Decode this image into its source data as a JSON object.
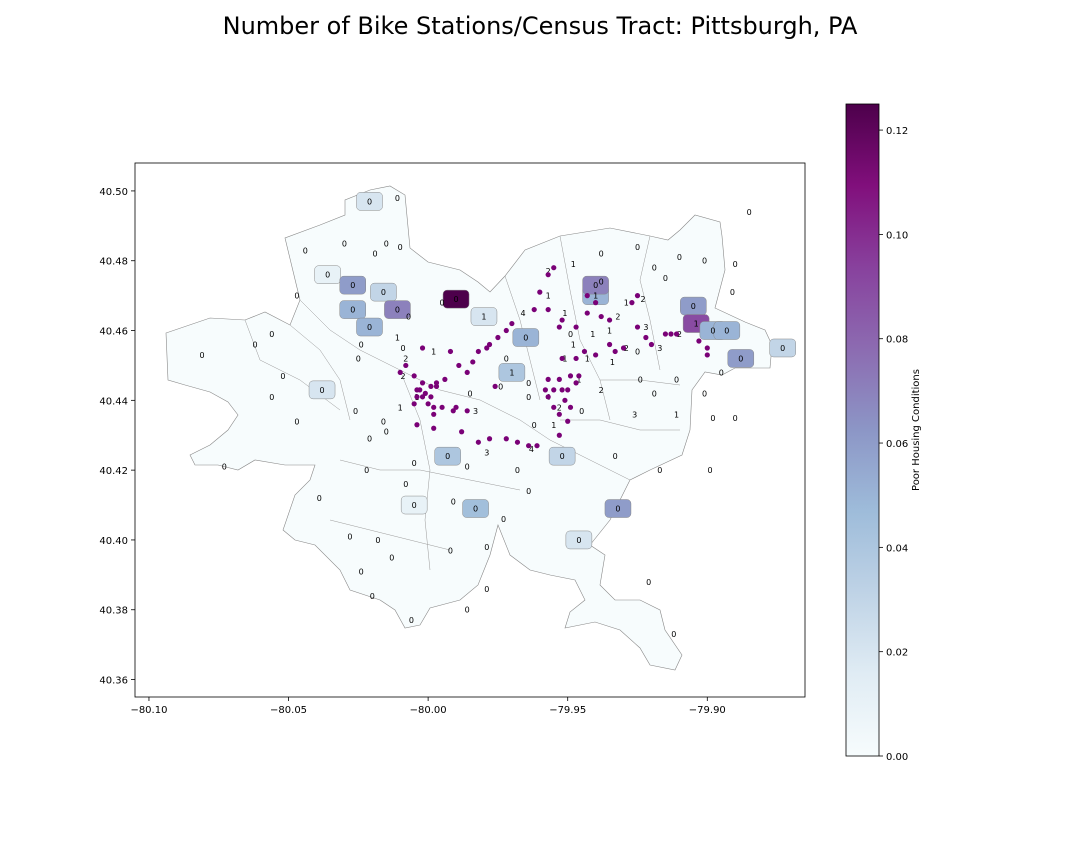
{
  "title": "Number of Bike Stations/Census Tract: Pittsburgh, PA",
  "chart_data": {
    "type": "choropleth",
    "x_ticks": [
      "−80.10",
      "−80.05",
      "−80.00",
      "−79.95",
      "−79.90"
    ],
    "x_tick_values": [
      -80.1,
      -80.05,
      -80.0,
      -79.95,
      -79.9
    ],
    "y_ticks": [
      "40.50",
      "40.48",
      "40.46",
      "40.44",
      "40.42",
      "40.40",
      "40.38",
      "40.36"
    ],
    "y_tick_values": [
      40.5,
      40.48,
      40.46,
      40.44,
      40.42,
      40.4,
      40.38,
      40.36
    ],
    "xlim": [
      -80.105,
      -79.865
    ],
    "ylim": [
      40.355,
      40.508
    ],
    "colorbar": {
      "label": "Poor Housing Conditions",
      "range": [
        0,
        0.125
      ],
      "ticks": [
        "0.00",
        "0.02",
        "0.04",
        "0.06",
        "0.08",
        "0.10",
        "0.12"
      ],
      "tick_values": [
        0.0,
        0.02,
        0.04,
        0.06,
        0.08,
        0.1,
        0.12
      ],
      "colormap": "BuPu",
      "low_color": "#f7fcfd",
      "high_color": "#4d004b"
    },
    "station_color": "#7a0177",
    "tracts": [
      {
        "lon": -80.081,
        "lat": 40.453,
        "value": 0.0,
        "count": 0
      },
      {
        "lon": -80.062,
        "lat": 40.456,
        "value": 0.0,
        "count": 0
      },
      {
        "lon": -80.056,
        "lat": 40.459,
        "value": 0.0,
        "count": 0
      },
      {
        "lon": -80.052,
        "lat": 40.447,
        "value": 0.0,
        "count": 0
      },
      {
        "lon": -80.056,
        "lat": 40.441,
        "value": 0.0,
        "count": 0
      },
      {
        "lon": -80.047,
        "lat": 40.434,
        "value": 0.0,
        "count": 0
      },
      {
        "lon": -80.038,
        "lat": 40.443,
        "value": 0.02,
        "count": 0
      },
      {
        "lon": -80.073,
        "lat": 40.421,
        "value": 0.0,
        "count": 0
      },
      {
        "lon": -80.039,
        "lat": 40.412,
        "value": 0.0,
        "count": 0
      },
      {
        "lon": -80.047,
        "lat": 40.47,
        "value": 0.0,
        "count": 0
      },
      {
        "lon": -80.044,
        "lat": 40.483,
        "value": 0.0,
        "count": 0
      },
      {
        "lon": -80.036,
        "lat": 40.476,
        "value": 0.01,
        "count": 0
      },
      {
        "lon": -80.03,
        "lat": 40.485,
        "value": 0.0,
        "count": 0
      },
      {
        "lon": -80.027,
        "lat": 40.473,
        "value": 0.06,
        "count": 0
      },
      {
        "lon": -80.027,
        "lat": 40.466,
        "value": 0.05,
        "count": 0
      },
      {
        "lon": -80.021,
        "lat": 40.497,
        "value": 0.02,
        "count": 0
      },
      {
        "lon": -80.011,
        "lat": 40.498,
        "value": 0.0,
        "count": 0
      },
      {
        "lon": -80.019,
        "lat": 40.482,
        "value": 0.0,
        "count": 0
      },
      {
        "lon": -80.015,
        "lat": 40.485,
        "value": 0.0,
        "count": 0
      },
      {
        "lon": -80.01,
        "lat": 40.484,
        "value": 0.0,
        "count": 0
      },
      {
        "lon": -80.016,
        "lat": 40.471,
        "value": 0.03,
        "count": 0
      },
      {
        "lon": -80.021,
        "lat": 40.461,
        "value": 0.05,
        "count": 0
      },
      {
        "lon": -80.024,
        "lat": 40.456,
        "value": 0.0,
        "count": 0
      },
      {
        "lon": -80.025,
        "lat": 40.452,
        "value": 0.0,
        "count": 0
      },
      {
        "lon": -80.011,
        "lat": 40.466,
        "value": 0.07,
        "count": 0
      },
      {
        "lon": -80.007,
        "lat": 40.464,
        "value": 0.0,
        "count": 0
      },
      {
        "lon": -79.995,
        "lat": 40.468,
        "value": 0.0,
        "count": 0
      },
      {
        "lon": -79.99,
        "lat": 40.469,
        "value": 0.125,
        "count": 0
      },
      {
        "lon": -79.98,
        "lat": 40.464,
        "value": 0.02,
        "count": 1
      },
      {
        "lon": -80.011,
        "lat": 40.458,
        "value": 0.0,
        "count": 1
      },
      {
        "lon": -80.009,
        "lat": 40.455,
        "value": 0.0,
        "count": 0
      },
      {
        "lon": -80.008,
        "lat": 40.452,
        "value": 0.0,
        "count": 2
      },
      {
        "lon": -80.009,
        "lat": 40.447,
        "value": 0.0,
        "count": 2
      },
      {
        "lon": -79.998,
        "lat": 40.454,
        "value": 0.0,
        "count": 1
      },
      {
        "lon": -80.004,
        "lat": 40.441,
        "value": 0.0,
        "count": 1
      },
      {
        "lon": -80.01,
        "lat": 40.438,
        "value": 0.0,
        "count": 1
      },
      {
        "lon": -80.026,
        "lat": 40.437,
        "value": 0.0,
        "count": 0
      },
      {
        "lon": -80.016,
        "lat": 40.434,
        "value": 0.0,
        "count": 0
      },
      {
        "lon": -80.021,
        "lat": 40.429,
        "value": 0.0,
        "count": 0
      },
      {
        "lon": -80.022,
        "lat": 40.42,
        "value": 0.0,
        "count": 0
      },
      {
        "lon": -80.005,
        "lat": 40.422,
        "value": 0.0,
        "count": 0
      },
      {
        "lon": -80.008,
        "lat": 40.416,
        "value": 0.0,
        "count": 0
      },
      {
        "lon": -80.005,
        "lat": 40.41,
        "value": 0.01,
        "count": 0
      },
      {
        "lon": -80.015,
        "lat": 40.431,
        "value": 0.0,
        "count": 0
      },
      {
        "lon": -79.993,
        "lat": 40.424,
        "value": 0.04,
        "count": 0
      },
      {
        "lon": -79.986,
        "lat": 40.421,
        "value": 0.0,
        "count": 0
      },
      {
        "lon": -79.991,
        "lat": 40.411,
        "value": 0.0,
        "count": 0
      },
      {
        "lon": -79.983,
        "lat": 40.409,
        "value": 0.045,
        "count": 0
      },
      {
        "lon": -79.968,
        "lat": 40.42,
        "value": 0.0,
        "count": 0
      },
      {
        "lon": -79.973,
        "lat": 40.406,
        "value": 0.0,
        "count": 0
      },
      {
        "lon": -79.964,
        "lat": 40.414,
        "value": 0.0,
        "count": 0
      },
      {
        "lon": -80.028,
        "lat": 40.401,
        "value": 0.0,
        "count": 0
      },
      {
        "lon": -80.018,
        "lat": 40.4,
        "value": 0.0,
        "count": 0
      },
      {
        "lon": -80.024,
        "lat": 40.391,
        "value": 0.0,
        "count": 0
      },
      {
        "lon": -80.02,
        "lat": 40.384,
        "value": 0.0,
        "count": 0
      },
      {
        "lon": -80.013,
        "lat": 40.395,
        "value": 0.0,
        "count": 0
      },
      {
        "lon": -80.006,
        "lat": 40.377,
        "value": 0.0,
        "count": 0
      },
      {
        "lon": -79.992,
        "lat": 40.397,
        "value": 0.0,
        "count": 0
      },
      {
        "lon": -79.986,
        "lat": 40.38,
        "value": 0.0,
        "count": 0
      },
      {
        "lon": -79.979,
        "lat": 40.398,
        "value": 0.0,
        "count": 0
      },
      {
        "lon": -79.979,
        "lat": 40.386,
        "value": 0.0,
        "count": 0
      },
      {
        "lon": -79.985,
        "lat": 40.442,
        "value": 0.0,
        "count": 0
      },
      {
        "lon": -79.983,
        "lat": 40.437,
        "value": 0.0,
        "count": 3
      },
      {
        "lon": -79.979,
        "lat": 40.425,
        "value": 0.0,
        "count": 3
      },
      {
        "lon": -79.974,
        "lat": 40.444,
        "value": 0.0,
        "count": 0
      },
      {
        "lon": -79.972,
        "lat": 40.452,
        "value": 0.0,
        "count": 0
      },
      {
        "lon": -79.97,
        "lat": 40.448,
        "value": 0.04,
        "count": 1
      },
      {
        "lon": -79.963,
        "lat": 40.426,
        "value": 0.0,
        "count": 4
      },
      {
        "lon": -79.962,
        "lat": 40.433,
        "value": 0.0,
        "count": 0
      },
      {
        "lon": -79.964,
        "lat": 40.441,
        "value": 0.0,
        "count": 0
      },
      {
        "lon": -79.964,
        "lat": 40.445,
        "value": 0.0,
        "count": 0
      },
      {
        "lon": -79.965,
        "lat": 40.458,
        "value": 0.05,
        "count": 0
      },
      {
        "lon": -79.966,
        "lat": 40.465,
        "value": 0.0,
        "count": 4
      },
      {
        "lon": -79.957,
        "lat": 40.47,
        "value": 0.0,
        "count": 1
      },
      {
        "lon": -79.957,
        "lat": 40.477,
        "value": 0.0,
        "count": 2
      },
      {
        "lon": -79.948,
        "lat": 40.479,
        "value": 0.0,
        "count": 1
      },
      {
        "lon": -79.951,
        "lat": 40.465,
        "value": 0.0,
        "count": 1
      },
      {
        "lon": -79.949,
        "lat": 40.459,
        "value": 0.0,
        "count": 0
      },
      {
        "lon": -79.951,
        "lat": 40.452,
        "value": 0.0,
        "count": 1
      },
      {
        "lon": -79.957,
        "lat": 40.441,
        "value": 0.0,
        "count": 4
      },
      {
        "lon": -79.955,
        "lat": 40.433,
        "value": 0.0,
        "count": 1
      },
      {
        "lon": -79.953,
        "lat": 40.438,
        "value": 0.0,
        "count": 2
      },
      {
        "lon": -79.946,
        "lat": 40.446,
        "value": 0.0,
        "count": 1
      },
      {
        "lon": -79.948,
        "lat": 40.456,
        "value": 0.0,
        "count": 1
      },
      {
        "lon": -79.943,
        "lat": 40.452,
        "value": 0.0,
        "count": 1
      },
      {
        "lon": -79.941,
        "lat": 40.459,
        "value": 0.0,
        "count": 1
      },
      {
        "lon": -79.935,
        "lat": 40.46,
        "value": 0.0,
        "count": 1
      },
      {
        "lon": -79.934,
        "lat": 40.451,
        "value": 0.0,
        "count": 1
      },
      {
        "lon": -79.932,
        "lat": 40.464,
        "value": 0.0,
        "count": 2
      },
      {
        "lon": -79.94,
        "lat": 40.47,
        "value": 0.05,
        "count": 1
      },
      {
        "lon": -79.94,
        "lat": 40.473,
        "value": 0.07,
        "count": 0
      },
      {
        "lon": -79.929,
        "lat": 40.468,
        "value": 0.0,
        "count": 1
      },
      {
        "lon": -79.923,
        "lat": 40.469,
        "value": 0.0,
        "count": 2
      },
      {
        "lon": -79.922,
        "lat": 40.461,
        "value": 0.0,
        "count": 3
      },
      {
        "lon": -79.917,
        "lat": 40.455,
        "value": 0.0,
        "count": 3
      },
      {
        "lon": -79.91,
        "lat": 40.459,
        "value": 0.0,
        "count": 2
      },
      {
        "lon": -79.929,
        "lat": 40.455,
        "value": 0.0,
        "count": 2
      },
      {
        "lon": -79.925,
        "lat": 40.454,
        "value": 0.0,
        "count": 0
      },
      {
        "lon": -79.924,
        "lat": 40.446,
        "value": 0.0,
        "count": 0
      },
      {
        "lon": -79.938,
        "lat": 40.443,
        "value": 0.0,
        "count": 2
      },
      {
        "lon": -79.945,
        "lat": 40.437,
        "value": 0.0,
        "count": 0
      },
      {
        "lon": -79.926,
        "lat": 40.436,
        "value": 0.0,
        "count": 3
      },
      {
        "lon": -79.919,
        "lat": 40.442,
        "value": 0.0,
        "count": 0
      },
      {
        "lon": -79.911,
        "lat": 40.446,
        "value": 0.0,
        "count": 0
      },
      {
        "lon": -79.911,
        "lat": 40.436,
        "value": 0.0,
        "count": 1
      },
      {
        "lon": -79.901,
        "lat": 40.442,
        "value": 0.0,
        "count": 0
      },
      {
        "lon": -79.895,
        "lat": 40.448,
        "value": 0.0,
        "count": 0
      },
      {
        "lon": -79.898,
        "lat": 40.435,
        "value": 0.0,
        "count": 0
      },
      {
        "lon": -79.89,
        "lat": 40.435,
        "value": 0.0,
        "count": 0
      },
      {
        "lon": -79.952,
        "lat": 40.424,
        "value": 0.03,
        "count": 0
      },
      {
        "lon": -79.933,
        "lat": 40.424,
        "value": 0.0,
        "count": 0
      },
      {
        "lon": -79.917,
        "lat": 40.42,
        "value": 0.0,
        "count": 0
      },
      {
        "lon": -79.899,
        "lat": 40.42,
        "value": 0.0,
        "count": 0
      },
      {
        "lon": -79.932,
        "lat": 40.409,
        "value": 0.06,
        "count": 0
      },
      {
        "lon": -79.946,
        "lat": 40.4,
        "value": 0.02,
        "count": 0
      },
      {
        "lon": -79.921,
        "lat": 40.388,
        "value": 0.0,
        "count": 0
      },
      {
        "lon": -79.912,
        "lat": 40.373,
        "value": 0.0,
        "count": 0
      },
      {
        "lon": -79.938,
        "lat": 40.482,
        "value": 0.0,
        "count": 0
      },
      {
        "lon": -79.925,
        "lat": 40.484,
        "value": 0.0,
        "count": 0
      },
      {
        "lon": -79.938,
        "lat": 40.474,
        "value": 0.0,
        "count": 0
      },
      {
        "lon": -79.919,
        "lat": 40.478,
        "value": 0.0,
        "count": 0
      },
      {
        "lon": -79.915,
        "lat": 40.475,
        "value": 0.0,
        "count": 0
      },
      {
        "lon": -79.91,
        "lat": 40.481,
        "value": 0.0,
        "count": 0
      },
      {
        "lon": -79.901,
        "lat": 40.48,
        "value": 0.0,
        "count": 0
      },
      {
        "lon": -79.905,
        "lat": 40.467,
        "value": 0.06,
        "count": 0
      },
      {
        "lon": -79.904,
        "lat": 40.462,
        "value": 0.09,
        "count": 1
      },
      {
        "lon": -79.898,
        "lat": 40.46,
        "value": 0.05,
        "count": 0
      },
      {
        "lon": -79.893,
        "lat": 40.46,
        "value": 0.05,
        "count": 0
      },
      {
        "lon": -79.888,
        "lat": 40.452,
        "value": 0.06,
        "count": 0
      },
      {
        "lon": -79.873,
        "lat": 40.455,
        "value": 0.03,
        "count": 0
      },
      {
        "lon": -79.891,
        "lat": 40.471,
        "value": 0.0,
        "count": 0
      },
      {
        "lon": -79.89,
        "lat": 40.479,
        "value": 0.0,
        "count": 0
      },
      {
        "lon": -79.885,
        "lat": 40.494,
        "value": 0.0,
        "count": 0
      }
    ],
    "stations": [
      [
        -79.955,
        40.478
      ],
      [
        -79.957,
        40.476
      ],
      [
        -79.96,
        40.471
      ],
      [
        -79.962,
        40.466
      ],
      [
        -79.957,
        40.466
      ],
      [
        -79.953,
        40.461
      ],
      [
        -79.952,
        40.463
      ],
      [
        -79.947,
        40.461
      ],
      [
        -79.943,
        40.465
      ],
      [
        -79.938,
        40.464
      ],
      [
        -79.935,
        40.463
      ],
      [
        -79.94,
        40.468
      ],
      [
        -79.943,
        40.47
      ],
      [
        -79.927,
        40.468
      ],
      [
        -79.925,
        40.47
      ],
      [
        -79.925,
        40.461
      ],
      [
        -79.922,
        40.458
      ],
      [
        -79.92,
        40.456
      ],
      [
        -79.915,
        40.459
      ],
      [
        -79.913,
        40.459
      ],
      [
        -79.911,
        40.459
      ],
      [
        -79.903,
        40.457
      ],
      [
        -79.9,
        40.455
      ],
      [
        -79.9,
        40.453
      ],
      [
        -79.93,
        40.455
      ],
      [
        -79.933,
        40.454
      ],
      [
        -79.935,
        40.456
      ],
      [
        -79.94,
        40.453
      ],
      [
        -79.944,
        40.454
      ],
      [
        -79.947,
        40.452
      ],
      [
        -79.952,
        40.452
      ],
      [
        -79.949,
        40.447
      ],
      [
        -79.946,
        40.447
      ],
      [
        -79.947,
        40.445
      ],
      [
        -79.95,
        40.443
      ],
      [
        -79.951,
        40.44
      ],
      [
        -79.949,
        40.438
      ],
      [
        -79.953,
        40.436
      ],
      [
        -79.955,
        40.438
      ],
      [
        -79.957,
        40.441
      ],
      [
        -79.958,
        40.443
      ],
      [
        -79.957,
        40.446
      ],
      [
        -79.953,
        40.446
      ],
      [
        -79.955,
        40.443
      ],
      [
        -79.952,
        40.443
      ],
      [
        -79.95,
        40.434
      ],
      [
        -79.953,
        40.43
      ],
      [
        -79.961,
        40.427
      ],
      [
        -79.964,
        40.427
      ],
      [
        -79.968,
        40.428
      ],
      [
        -79.972,
        40.429
      ],
      [
        -79.978,
        40.429
      ],
      [
        -79.982,
        40.428
      ],
      [
        -79.988,
        40.431
      ],
      [
        -79.991,
        40.437
      ],
      [
        -79.998,
        40.438
      ],
      [
        -80.0,
        40.439
      ],
      [
        -80.002,
        40.441
      ],
      [
        -80.005,
        40.439
      ],
      [
        -80.004,
        40.441
      ],
      [
        -80.003,
        40.443
      ],
      [
        -80.001,
        40.442
      ],
      [
        -79.999,
        40.441
      ],
      [
        -79.997,
        40.444
      ],
      [
        -79.994,
        40.446
      ],
      [
        -79.997,
        40.445
      ],
      [
        -79.999,
        40.444
      ],
      [
        -80.002,
        40.445
      ],
      [
        -80.004,
        40.443
      ],
      [
        -80.005,
        40.447
      ],
      [
        -80.008,
        40.45
      ],
      [
        -80.01,
        40.448
      ],
      [
        -80.002,
        40.455
      ],
      [
        -79.992,
        40.454
      ],
      [
        -79.989,
        40.45
      ],
      [
        -79.986,
        40.448
      ],
      [
        -79.984,
        40.451
      ],
      [
        -79.982,
        40.454
      ],
      [
        -79.979,
        40.455
      ],
      [
        -79.978,
        40.456
      ],
      [
        -79.975,
        40.458
      ],
      [
        -79.972,
        40.46
      ],
      [
        -79.97,
        40.462
      ],
      [
        -79.976,
        40.444
      ],
      [
        -79.998,
        40.432
      ],
      [
        -80.004,
        40.433
      ],
      [
        -79.998,
        40.436
      ],
      [
        -79.995,
        40.438
      ],
      [
        -79.99,
        40.438
      ],
      [
        -79.986,
        40.437
      ]
    ]
  }
}
